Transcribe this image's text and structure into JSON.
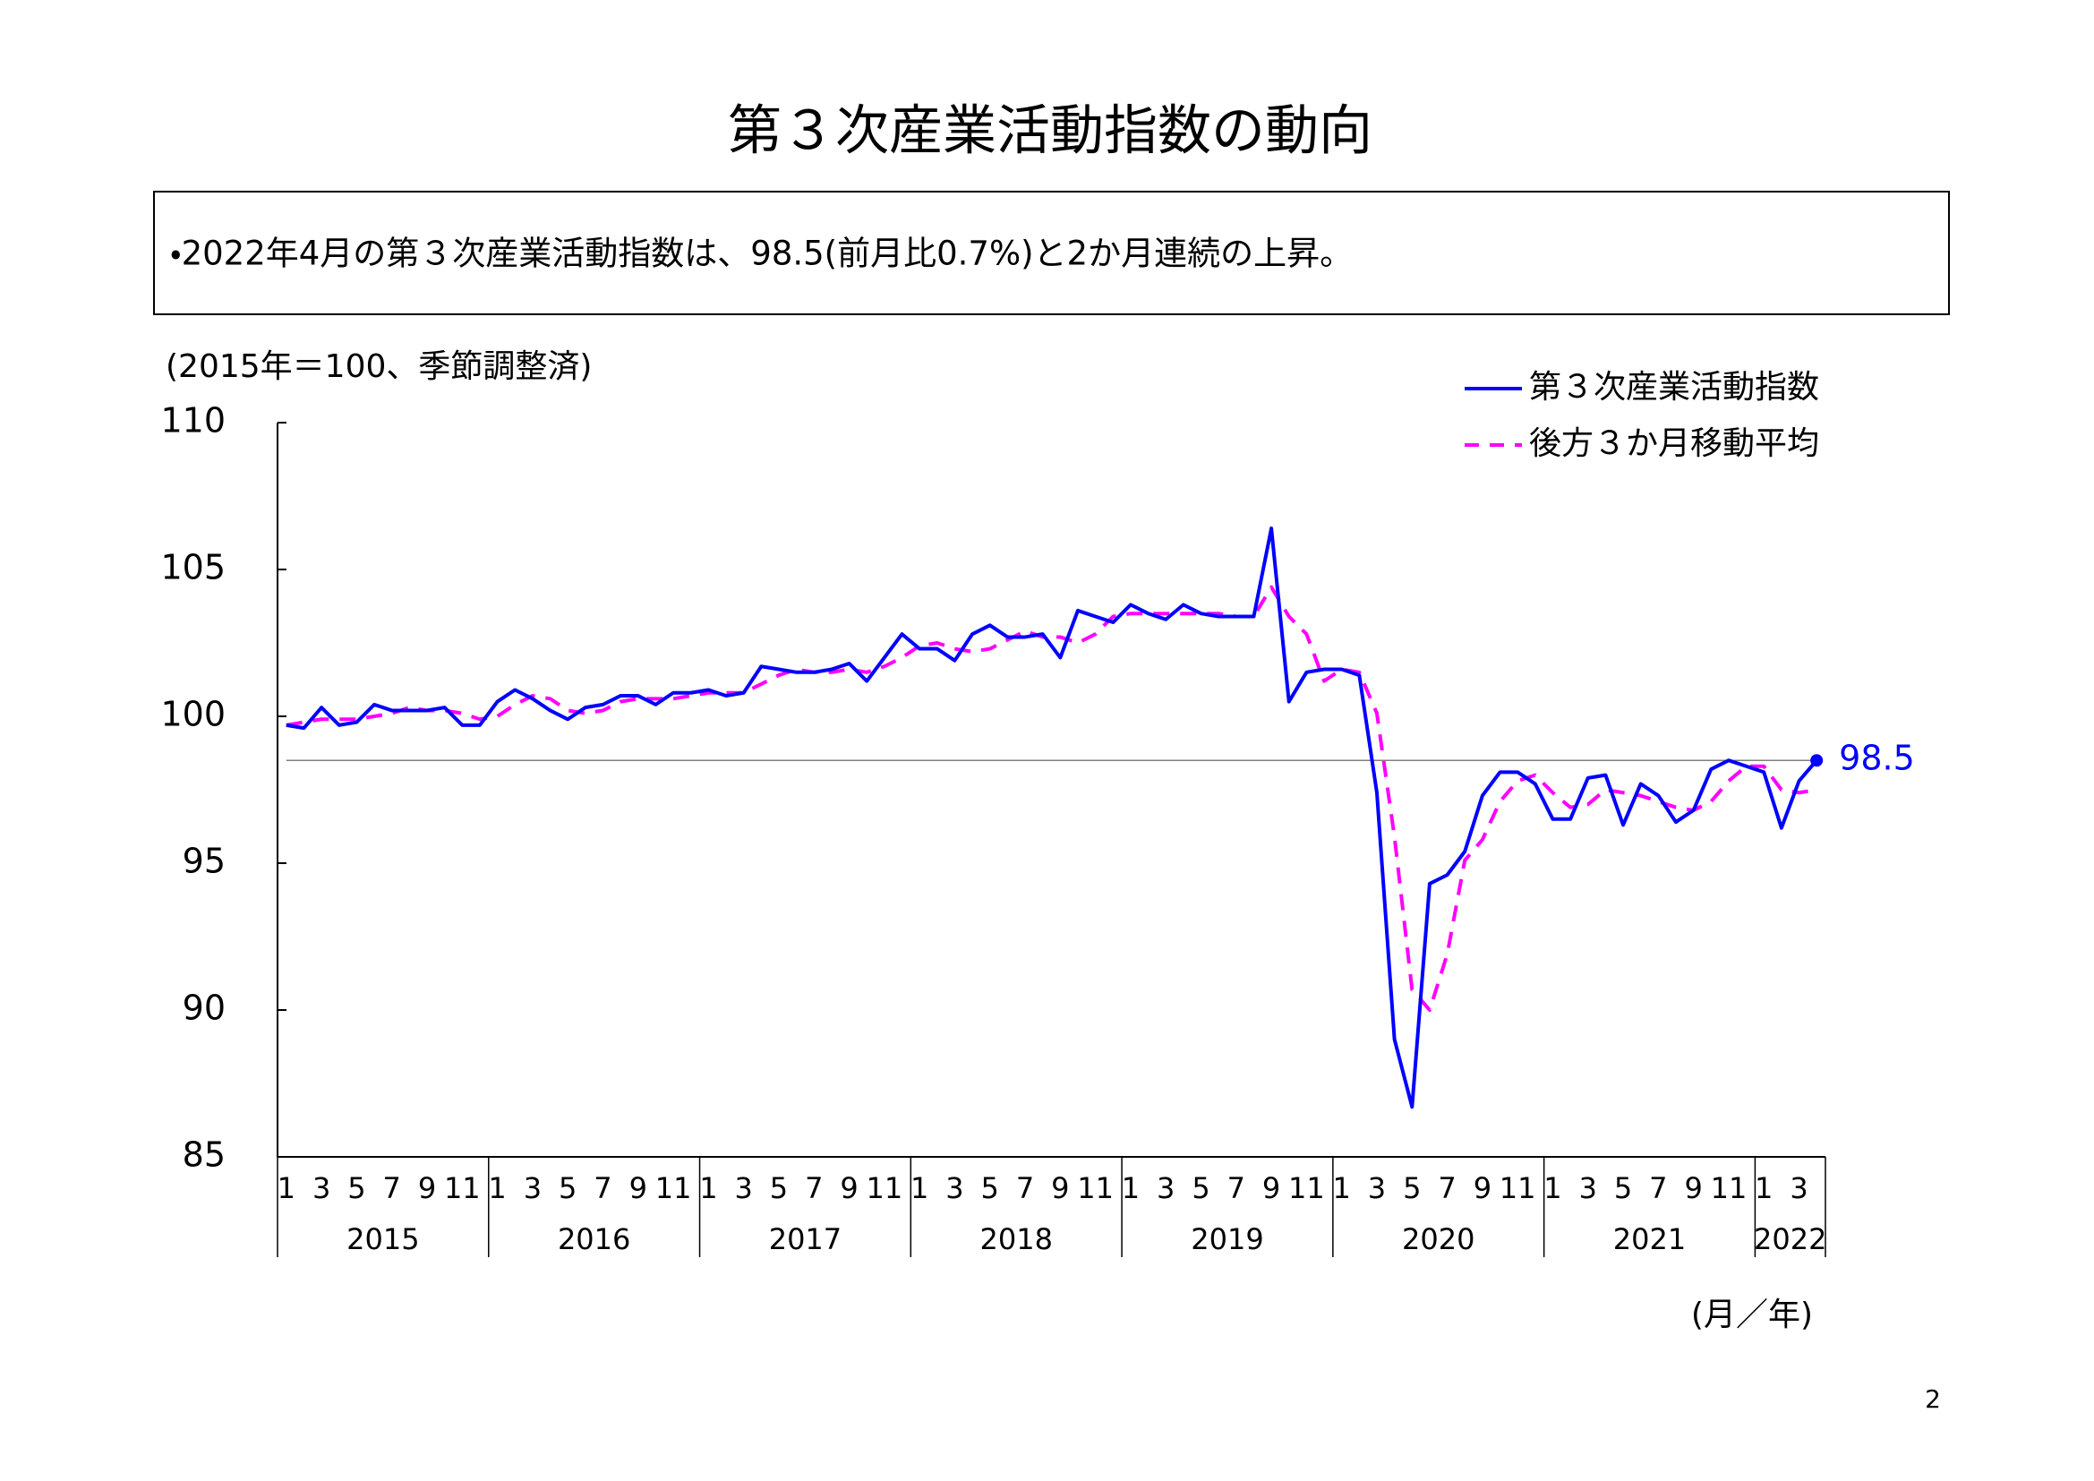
{
  "chart_data": {
    "type": "line",
    "title": "第３次産業活動指数の動向",
    "subtitle": "・2022年4月の第３次産業活動指数は、98.5(前月比0.7%)と2か月連続の上昇。",
    "note": "(2015年＝100、季節調整済)",
    "x_label": "(月／年)",
    "page_number": "2",
    "categories": [
      "1",
      null,
      "3",
      null,
      "5",
      null,
      "7",
      null,
      "9",
      null,
      "11",
      null,
      "1",
      null,
      "3",
      null,
      "5",
      null,
      "7",
      null,
      "9",
      null,
      "11",
      null,
      "1",
      null,
      "3",
      null,
      "5",
      null,
      "7",
      null,
      "9",
      null,
      "11",
      null,
      "1",
      null,
      "3",
      null,
      "5",
      null,
      "7",
      null,
      "9",
      null,
      "11",
      null,
      "1",
      null,
      "3",
      null,
      "5",
      null,
      "7",
      null,
      "9",
      null,
      "11",
      null,
      "1",
      null,
      "3",
      null,
      "5",
      null,
      "7",
      null,
      "9",
      null,
      "11",
      null,
      "1",
      null,
      "3",
      null,
      "5",
      null,
      "7",
      null,
      "9",
      null,
      "11",
      null,
      "1",
      null,
      "3",
      null
    ],
    "years": [
      "2015",
      "2016",
      "2017",
      "2018",
      "2019",
      "2020",
      "2021",
      "2022"
    ],
    "series": [
      {
        "name": "第３次産業活動指数",
        "color": "#0000ff",
        "style": "solid",
        "values": [
          99.7,
          99.6,
          100.3,
          99.7,
          99.8,
          100.4,
          100.2,
          100.2,
          100.2,
          100.3,
          99.7,
          99.7,
          100.5,
          100.9,
          100.6,
          100.2,
          99.9,
          100.3,
          100.4,
          100.7,
          100.7,
          100.4,
          100.8,
          100.8,
          100.9,
          100.7,
          100.8,
          101.7,
          101.6,
          101.5,
          101.5,
          101.6,
          101.8,
          101.2,
          102.0,
          102.8,
          102.3,
          102.3,
          101.9,
          102.8,
          103.1,
          102.7,
          102.7,
          102.8,
          102.0,
          103.6,
          103.4,
          103.2,
          103.8,
          103.5,
          103.3,
          103.8,
          103.5,
          103.4,
          103.4,
          103.4,
          106.4,
          100.5,
          101.5,
          101.6,
          101.6,
          101.4,
          97.4,
          89.0,
          86.7,
          94.3,
          94.6,
          95.4,
          97.3,
          98.1,
          98.1,
          97.7,
          96.5,
          96.5,
          97.9,
          98.0,
          96.3,
          97.7,
          97.3,
          96.4,
          96.8,
          98.2,
          98.5,
          98.3,
          98.1,
          96.2,
          97.8,
          98.5
        ]
      },
      {
        "name": "後方３か月移動平均",
        "color": "#ff00ff",
        "style": "dashed",
        "values": [
          99.7,
          99.8,
          99.9,
          99.9,
          99.9,
          100.0,
          100.1,
          100.3,
          100.2,
          100.2,
          100.1,
          99.9,
          100.0,
          100.4,
          100.7,
          100.6,
          100.2,
          100.1,
          100.2,
          100.5,
          100.6,
          100.6,
          100.6,
          100.7,
          100.8,
          100.8,
          100.8,
          101.1,
          101.4,
          101.6,
          101.5,
          101.5,
          101.6,
          101.5,
          101.7,
          102.0,
          102.4,
          102.5,
          102.3,
          102.2,
          102.3,
          102.6,
          102.9,
          102.7,
          102.7,
          102.5,
          102.8,
          103.4,
          103.5,
          103.5,
          103.5,
          103.5,
          103.5,
          103.5,
          103.4,
          103.4,
          104.4,
          103.4,
          102.8,
          101.2,
          101.6,
          101.5,
          100.1,
          95.9,
          90.7,
          90.0,
          91.9,
          95.1,
          95.8,
          97.1,
          97.8,
          98.0,
          97.4,
          96.9,
          97.0,
          97.5,
          97.4,
          97.3,
          97.1,
          96.9,
          96.8,
          97.1,
          97.8,
          98.3,
          98.3,
          97.5,
          97.4,
          97.5
        ]
      }
    ],
    "ylim": [
      85,
      110
    ],
    "yticks": [
      85,
      90,
      95,
      100,
      105,
      110
    ],
    "grid": false
  }
}
